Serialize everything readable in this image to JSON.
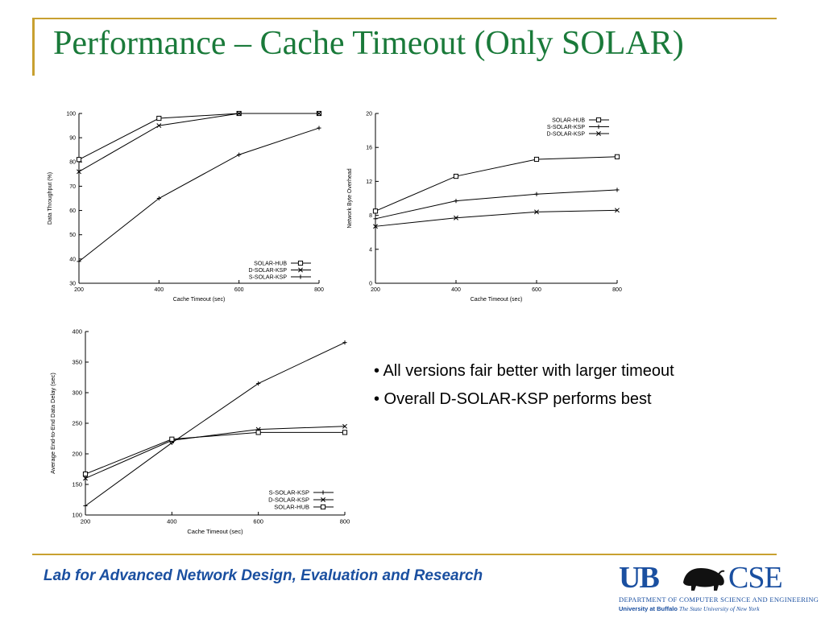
{
  "slide": {
    "title": "Performance – Cache Timeout (Only SOLAR)",
    "bullets": [
      "• All versions fair better with larger timeout",
      "• Overall D-SOLAR-KSP performs best"
    ],
    "footer": "Lab for Advanced Network Design, Evaluation and Research",
    "logo": {
      "ub": "UB",
      "cse": "CSE",
      "dept": "DEPARTMENT OF COMPUTER SCIENCE AND ENGINEERING",
      "univ_bold": "University at Buffalo",
      "univ_italic": "The State University of New York"
    },
    "colors": {
      "title": "#1a7a3a",
      "rule": "#c8a030",
      "footer": "#1a4fa0"
    }
  },
  "chart_data": [
    {
      "type": "line",
      "xlabel": "Cache Timeout (sec)",
      "ylabel": "Data Throughput (%)",
      "x": [
        200,
        400,
        600,
        800
      ],
      "xticks": [
        200,
        400,
        600,
        800
      ],
      "yticks": [
        30,
        40,
        50,
        60,
        70,
        80,
        90,
        100
      ],
      "xlim": [
        200,
        800
      ],
      "ylim": [
        30,
        100
      ],
      "legend": "bottom-right",
      "series": [
        {
          "name": "SOLAR-HUB",
          "marker": "square",
          "values": [
            81,
            98,
            100,
            100
          ]
        },
        {
          "name": "D-SOLAR-KSP",
          "marker": "x",
          "values": [
            76,
            95,
            100,
            100
          ]
        },
        {
          "name": "S-SOLAR-KSP",
          "marker": "plus",
          "values": [
            39,
            65,
            83,
            94
          ]
        }
      ]
    },
    {
      "type": "line",
      "xlabel": "Cache Timeout (sec)",
      "ylabel": "Network Byte Overhead",
      "x": [
        200,
        400,
        600,
        800
      ],
      "xticks": [
        200,
        400,
        600,
        800
      ],
      "yticks": [
        0,
        4,
        8,
        12,
        16,
        20
      ],
      "xlim": [
        200,
        800
      ],
      "ylim": [
        0,
        20
      ],
      "legend": "top-right",
      "series": [
        {
          "name": "SOLAR-HUB",
          "marker": "square",
          "values": [
            8.5,
            12.6,
            14.6,
            14.9
          ]
        },
        {
          "name": "S-SOLAR-KSP",
          "marker": "plus",
          "values": [
            7.6,
            9.7,
            10.5,
            11.0
          ]
        },
        {
          "name": "D-SOLAR-KSP",
          "marker": "x",
          "values": [
            6.7,
            7.7,
            8.4,
            8.6
          ]
        }
      ]
    },
    {
      "type": "line",
      "xlabel": "Cache Timeout (sec)",
      "ylabel": "Average End-to-End Data Delay (sec)",
      "x": [
        200,
        400,
        600,
        800
      ],
      "xticks": [
        200,
        400,
        600,
        800
      ],
      "yticks": [
        100,
        150,
        200,
        250,
        300,
        350,
        400
      ],
      "xlim": [
        200,
        800
      ],
      "ylim": [
        100,
        400
      ],
      "legend": "bottom-right",
      "series": [
        {
          "name": "S-SOLAR-KSP",
          "marker": "plus",
          "values": [
            115,
            218,
            315,
            382
          ]
        },
        {
          "name": "D-SOLAR-KSP",
          "marker": "x",
          "values": [
            160,
            222,
            240,
            245
          ]
        },
        {
          "name": "SOLAR-HUB",
          "marker": "square",
          "values": [
            167,
            224,
            235,
            235
          ]
        }
      ]
    }
  ]
}
